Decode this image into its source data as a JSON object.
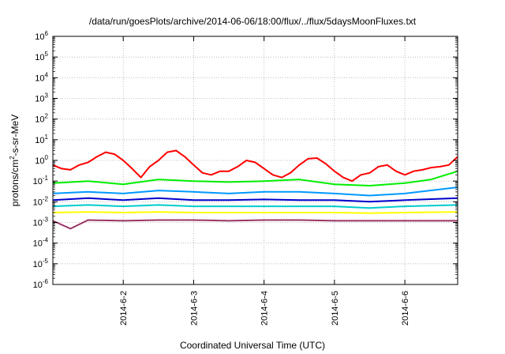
{
  "chart_data": {
    "type": "line",
    "title": "/data/run/goesPlots/archive/2014-06-06/18:00/flux/../flux/5daysMoonFluxes.txt",
    "xlabel": "Coordinated Universal Time (UTC)",
    "ylabel": "protons/cm²-s-sr-MeV",
    "yscale": "log",
    "ylim": [
      1e-06,
      1000000.0
    ],
    "xlim": [
      "2014-06-01 00:00",
      "2014-06-06 18:00"
    ],
    "grid": true,
    "legend": "none",
    "y_ticks": [
      {
        "base": "10",
        "exp": "-6"
      },
      {
        "base": "10",
        "exp": "-5"
      },
      {
        "base": "10",
        "exp": "-4"
      },
      {
        "base": "10",
        "exp": "-3"
      },
      {
        "base": "10",
        "exp": "-2"
      },
      {
        "base": "10",
        "exp": "-1"
      },
      {
        "base": "10",
        "exp": "0"
      },
      {
        "base": "10",
        "exp": "1"
      },
      {
        "base": "10",
        "exp": "2"
      },
      {
        "base": "10",
        "exp": "3"
      },
      {
        "base": "10",
        "exp": "4"
      },
      {
        "base": "10",
        "exp": "5"
      },
      {
        "base": "10",
        "exp": "6"
      }
    ],
    "x_ticks": [
      "2014-6-2",
      "2014-6-3",
      "2014-6-4",
      "2014-6-5",
      "2014-6-6"
    ],
    "series": [
      {
        "color": "#ff0000",
        "x": [
          "2014-06-01 00:00",
          "2014-06-01 03:00",
          "2014-06-01 06:00",
          "2014-06-01 09:00",
          "2014-06-01 12:00",
          "2014-06-01 15:00",
          "2014-06-01 18:00",
          "2014-06-01 21:00",
          "2014-06-02 00:00",
          "2014-06-02 03:00",
          "2014-06-02 06:00",
          "2014-06-02 09:00",
          "2014-06-02 12:00",
          "2014-06-02 15:00",
          "2014-06-02 18:00",
          "2014-06-02 21:00",
          "2014-06-03 00:00",
          "2014-06-03 03:00",
          "2014-06-03 06:00",
          "2014-06-03 09:00",
          "2014-06-03 12:00",
          "2014-06-03 15:00",
          "2014-06-03 18:00",
          "2014-06-03 21:00",
          "2014-06-04 00:00",
          "2014-06-04 03:00",
          "2014-06-04 06:00",
          "2014-06-04 09:00",
          "2014-06-04 12:00",
          "2014-06-04 15:00",
          "2014-06-04 18:00",
          "2014-06-04 21:00",
          "2014-06-05 00:00",
          "2014-06-05 03:00",
          "2014-06-05 06:00",
          "2014-06-05 09:00",
          "2014-06-05 12:00",
          "2014-06-05 15:00",
          "2014-06-05 18:00",
          "2014-06-05 21:00",
          "2014-06-06 00:00",
          "2014-06-06 03:00",
          "2014-06-06 06:00",
          "2014-06-06 09:00",
          "2014-06-06 12:00",
          "2014-06-06 15:00",
          "2014-06-06 18:00"
        ],
        "y": [
          0.6,
          0.4,
          0.35,
          0.6,
          0.8,
          1.5,
          2.5,
          2.0,
          1.0,
          0.4,
          0.15,
          0.5,
          1.0,
          2.5,
          3.0,
          1.5,
          0.6,
          0.25,
          0.2,
          0.3,
          0.3,
          0.5,
          1.0,
          0.8,
          0.4,
          0.2,
          0.15,
          0.25,
          0.6,
          1.2,
          1.3,
          0.7,
          0.3,
          0.15,
          0.1,
          0.2,
          0.25,
          0.5,
          0.6,
          0.3,
          0.2,
          0.3,
          0.35,
          0.45,
          0.5,
          0.6,
          1.5
        ]
      },
      {
        "color": "#00ee00",
        "x": [
          "2014-06-01 00:00",
          "2014-06-01 12:00",
          "2014-06-02 00:00",
          "2014-06-02 12:00",
          "2014-06-03 00:00",
          "2014-06-03 12:00",
          "2014-06-04 00:00",
          "2014-06-04 12:00",
          "2014-06-05 00:00",
          "2014-06-05 12:00",
          "2014-06-06 00:00",
          "2014-06-06 09:00",
          "2014-06-06 18:00"
        ],
        "y": [
          0.08,
          0.1,
          0.07,
          0.12,
          0.1,
          0.09,
          0.1,
          0.12,
          0.07,
          0.06,
          0.08,
          0.12,
          0.3
        ]
      },
      {
        "color": "#0099ff",
        "x": [
          "2014-06-01 00:00",
          "2014-06-01 12:00",
          "2014-06-02 00:00",
          "2014-06-02 12:00",
          "2014-06-03 00:00",
          "2014-06-03 12:00",
          "2014-06-04 00:00",
          "2014-06-04 12:00",
          "2014-06-05 00:00",
          "2014-06-05 12:00",
          "2014-06-06 00:00",
          "2014-06-06 18:00"
        ],
        "y": [
          0.025,
          0.03,
          0.025,
          0.035,
          0.03,
          0.025,
          0.03,
          0.03,
          0.025,
          0.02,
          0.025,
          0.05
        ]
      },
      {
        "color": "#0000cc",
        "x": [
          "2014-06-01 00:00",
          "2014-06-01 12:00",
          "2014-06-02 00:00",
          "2014-06-02 12:00",
          "2014-06-03 00:00",
          "2014-06-03 12:00",
          "2014-06-04 00:00",
          "2014-06-04 12:00",
          "2014-06-05 00:00",
          "2014-06-05 12:00",
          "2014-06-06 00:00",
          "2014-06-06 18:00"
        ],
        "y": [
          0.012,
          0.015,
          0.012,
          0.015,
          0.012,
          0.012,
          0.013,
          0.012,
          0.012,
          0.01,
          0.012,
          0.015
        ]
      },
      {
        "color": "#00cccc",
        "x": [
          "2014-06-01 00:00",
          "2014-06-01 12:00",
          "2014-06-02 00:00",
          "2014-06-02 12:00",
          "2014-06-03 00:00",
          "2014-06-03 12:00",
          "2014-06-04 00:00",
          "2014-06-04 12:00",
          "2014-06-05 00:00",
          "2014-06-05 12:00",
          "2014-06-06 00:00",
          "2014-06-06 18:00"
        ],
        "y": [
          0.006,
          0.007,
          0.006,
          0.007,
          0.006,
          0.006,
          0.006,
          0.006,
          0.006,
          0.005,
          0.006,
          0.007
        ]
      },
      {
        "color": "#ffff00",
        "x": [
          "2014-06-01 00:00",
          "2014-06-01 12:00",
          "2014-06-02 00:00",
          "2014-06-02 12:00",
          "2014-06-03 00:00",
          "2014-06-03 12:00",
          "2014-06-04 00:00",
          "2014-06-04 12:00",
          "2014-06-05 00:00",
          "2014-06-05 12:00",
          "2014-06-06 00:00",
          "2014-06-06 18:00"
        ],
        "y": [
          0.003,
          0.0032,
          0.003,
          0.0032,
          0.003,
          0.003,
          0.003,
          0.003,
          0.003,
          0.0028,
          0.003,
          0.0032
        ]
      },
      {
        "color": "#993366",
        "x": [
          "2014-06-01 00:00",
          "2014-06-01 06:00",
          "2014-06-01 12:00",
          "2014-06-02 00:00",
          "2014-06-02 12:00",
          "2014-06-03 00:00",
          "2014-06-03 12:00",
          "2014-06-04 00:00",
          "2014-06-04 12:00",
          "2014-06-05 00:00",
          "2014-06-05 12:00",
          "2014-06-06 00:00",
          "2014-06-06 18:00"
        ],
        "y": [
          0.0012,
          0.0005,
          0.0013,
          0.0012,
          0.0013,
          0.0013,
          0.0012,
          0.0013,
          0.0013,
          0.0012,
          0.0012,
          0.0012,
          0.0012
        ]
      }
    ]
  }
}
